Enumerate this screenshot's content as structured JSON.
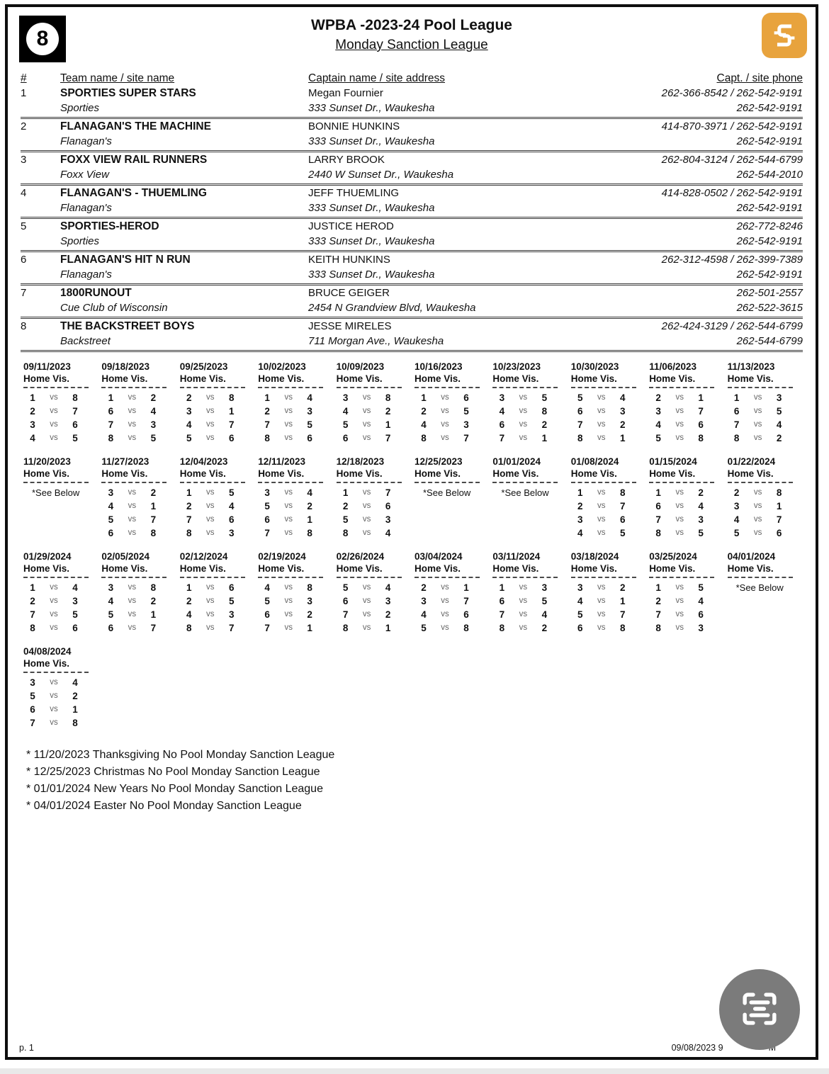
{
  "header": {
    "ball_number": "8",
    "title": "WPBA -2023-24 Pool League",
    "subtitle": "Monday Sanction League"
  },
  "team_table": {
    "columns": [
      "#",
      "Team name / site name",
      "Captain name / site address",
      "Capt. / site phone"
    ],
    "teams": [
      {
        "num": "1",
        "team": "SPORTIES SUPER STARS",
        "site": "Sporties",
        "captain": "Megan Fournier",
        "address": "333 Sunset Dr., Waukesha",
        "phone1": "262-366-8542 / 262-542-9191",
        "phone2": "262-542-9191"
      },
      {
        "num": "2",
        "team": "FLANAGAN'S THE MACHINE",
        "site": "Flanagan's",
        "captain": "BONNIE HUNKINS",
        "address": "333 Sunset Dr., Waukesha",
        "phone1": "414-870-3971 / 262-542-9191",
        "phone2": "262-542-9191"
      },
      {
        "num": "3",
        "team": "FOXX VIEW RAIL RUNNERS",
        "site": "Foxx View",
        "captain": "LARRY BROOK",
        "address": "2440 W Sunset Dr., Waukesha",
        "phone1": "262-804-3124 / 262-544-6799",
        "phone2": "262-544-2010"
      },
      {
        "num": "4",
        "team": "FLANAGAN'S - THUEMLING",
        "site": "Flanagan's",
        "captain": "JEFF THUEMLING",
        "address": "333 Sunset Dr., Waukesha",
        "phone1": "414-828-0502 / 262-542-9191",
        "phone2": "262-542-9191"
      },
      {
        "num": "5",
        "team": "SPORTIES-HEROD",
        "site": "Sporties",
        "captain": "JUSTICE HEROD",
        "address": "333 Sunset Dr., Waukesha",
        "phone1": "262-772-8246",
        "phone2": "262-542-9191"
      },
      {
        "num": "6",
        "team": "FLANAGAN'S HIT N RUN",
        "site": "Flanagan's",
        "captain": "KEITH HUNKINS",
        "address": "333 Sunset Dr., Waukesha",
        "phone1": "262-312-4598 / 262-399-7389",
        "phone2": "262-542-9191"
      },
      {
        "num": "7",
        "team": "1800RUNOUT",
        "site": "Cue Club of Wisconsin",
        "captain": "BRUCE GEIGER",
        "address": "2454 N Grandview Blvd, Waukesha",
        "phone1": "262-501-2557",
        "phone2": "262-522-3615"
      },
      {
        "num": "8",
        "team": "THE BACKSTREET BOYS",
        "site": "Backstreet",
        "captain": "JESSE MIRELES",
        "address": "711 Morgan Ave., Waukesha",
        "phone1": "262-424-3129 / 262-544-6799",
        "phone2": "262-544-6799"
      }
    ]
  },
  "schedule": {
    "home_vis_label": "Home Vis.",
    "vs_label": "vs",
    "see_below_label": "*See Below",
    "weeks": [
      {
        "date": "09/11/2023",
        "matches": [
          [
            1,
            8
          ],
          [
            2,
            7
          ],
          [
            3,
            6
          ],
          [
            4,
            5
          ]
        ]
      },
      {
        "date": "09/18/2023",
        "matches": [
          [
            1,
            2
          ],
          [
            6,
            4
          ],
          [
            7,
            3
          ],
          [
            8,
            5
          ]
        ]
      },
      {
        "date": "09/25/2023",
        "matches": [
          [
            2,
            8
          ],
          [
            3,
            1
          ],
          [
            4,
            7
          ],
          [
            5,
            6
          ]
        ]
      },
      {
        "date": "10/02/2023",
        "matches": [
          [
            1,
            4
          ],
          [
            2,
            3
          ],
          [
            7,
            5
          ],
          [
            8,
            6
          ]
        ]
      },
      {
        "date": "10/09/2023",
        "matches": [
          [
            3,
            8
          ],
          [
            4,
            2
          ],
          [
            5,
            1
          ],
          [
            6,
            7
          ]
        ]
      },
      {
        "date": "10/16/2023",
        "matches": [
          [
            1,
            6
          ],
          [
            2,
            5
          ],
          [
            4,
            3
          ],
          [
            8,
            7
          ]
        ]
      },
      {
        "date": "10/23/2023",
        "matches": [
          [
            3,
            5
          ],
          [
            4,
            8
          ],
          [
            6,
            2
          ],
          [
            7,
            1
          ]
        ]
      },
      {
        "date": "10/30/2023",
        "matches": [
          [
            5,
            4
          ],
          [
            6,
            3
          ],
          [
            7,
            2
          ],
          [
            8,
            1
          ]
        ]
      },
      {
        "date": "11/06/2023",
        "matches": [
          [
            2,
            1
          ],
          [
            3,
            7
          ],
          [
            4,
            6
          ],
          [
            5,
            8
          ]
        ]
      },
      {
        "date": "11/13/2023",
        "matches": [
          [
            1,
            3
          ],
          [
            6,
            5
          ],
          [
            7,
            4
          ],
          [
            8,
            2
          ]
        ]
      },
      {
        "date": "11/20/2023",
        "see_below": true
      },
      {
        "date": "11/27/2023",
        "matches": [
          [
            3,
            2
          ],
          [
            4,
            1
          ],
          [
            5,
            7
          ],
          [
            6,
            8
          ]
        ]
      },
      {
        "date": "12/04/2023",
        "matches": [
          [
            1,
            5
          ],
          [
            2,
            4
          ],
          [
            7,
            6
          ],
          [
            8,
            3
          ]
        ]
      },
      {
        "date": "12/11/2023",
        "matches": [
          [
            3,
            4
          ],
          [
            5,
            2
          ],
          [
            6,
            1
          ],
          [
            7,
            8
          ]
        ]
      },
      {
        "date": "12/18/2023",
        "matches": [
          [
            1,
            7
          ],
          [
            2,
            6
          ],
          [
            5,
            3
          ],
          [
            8,
            4
          ]
        ]
      },
      {
        "date": "12/25/2023",
        "see_below": true
      },
      {
        "date": "01/01/2024",
        "see_below": true
      },
      {
        "date": "01/08/2024",
        "matches": [
          [
            1,
            8
          ],
          [
            2,
            7
          ],
          [
            3,
            6
          ],
          [
            4,
            5
          ]
        ]
      },
      {
        "date": "01/15/2024",
        "matches": [
          [
            1,
            2
          ],
          [
            6,
            4
          ],
          [
            7,
            3
          ],
          [
            8,
            5
          ]
        ]
      },
      {
        "date": "01/22/2024",
        "matches": [
          [
            2,
            8
          ],
          [
            3,
            1
          ],
          [
            4,
            7
          ],
          [
            5,
            6
          ]
        ]
      },
      {
        "date": "01/29/2024",
        "matches": [
          [
            1,
            4
          ],
          [
            2,
            3
          ],
          [
            7,
            5
          ],
          [
            8,
            6
          ]
        ]
      },
      {
        "date": "02/05/2024",
        "matches": [
          [
            3,
            8
          ],
          [
            4,
            2
          ],
          [
            5,
            1
          ],
          [
            6,
            7
          ]
        ]
      },
      {
        "date": "02/12/2024",
        "matches": [
          [
            1,
            6
          ],
          [
            2,
            5
          ],
          [
            4,
            3
          ],
          [
            8,
            7
          ]
        ]
      },
      {
        "date": "02/19/2024",
        "matches": [
          [
            4,
            8
          ],
          [
            5,
            3
          ],
          [
            6,
            2
          ],
          [
            7,
            1
          ]
        ]
      },
      {
        "date": "02/26/2024",
        "matches": [
          [
            5,
            4
          ],
          [
            6,
            3
          ],
          [
            7,
            2
          ],
          [
            8,
            1
          ]
        ]
      },
      {
        "date": "03/04/2024",
        "matches": [
          [
            2,
            1
          ],
          [
            3,
            7
          ],
          [
            4,
            6
          ],
          [
            5,
            8
          ]
        ]
      },
      {
        "date": "03/11/2024",
        "matches": [
          [
            1,
            3
          ],
          [
            6,
            5
          ],
          [
            7,
            4
          ],
          [
            8,
            2
          ]
        ]
      },
      {
        "date": "03/18/2024",
        "matches": [
          [
            3,
            2
          ],
          [
            4,
            1
          ],
          [
            5,
            7
          ],
          [
            6,
            8
          ]
        ]
      },
      {
        "date": "03/25/2024",
        "matches": [
          [
            1,
            5
          ],
          [
            2,
            4
          ],
          [
            7,
            6
          ],
          [
            8,
            3
          ]
        ]
      },
      {
        "date": "04/01/2024",
        "see_below": true
      },
      {
        "date": "04/08/2024",
        "matches": [
          [
            3,
            4
          ],
          [
            5,
            2
          ],
          [
            6,
            1
          ],
          [
            7,
            8
          ]
        ]
      }
    ]
  },
  "notes": [
    "* 11/20/2023 Thanksgiving No Pool Monday Sanction League",
    "* 12/25/2023 Christmas No Pool Monday Sanction League",
    "* 01/01/2024 New Years No Pool Monday Sanction League",
    "* 04/01/2024 Easter No Pool Monday Sanction League"
  ],
  "footer": {
    "page": "p. 1",
    "timestamp_left": "09/08/2023 9",
    "timestamp_right": "M"
  },
  "colors": {
    "logo_orange": "#E8A33D",
    "scan_button_gray": "#7b7b7b"
  }
}
